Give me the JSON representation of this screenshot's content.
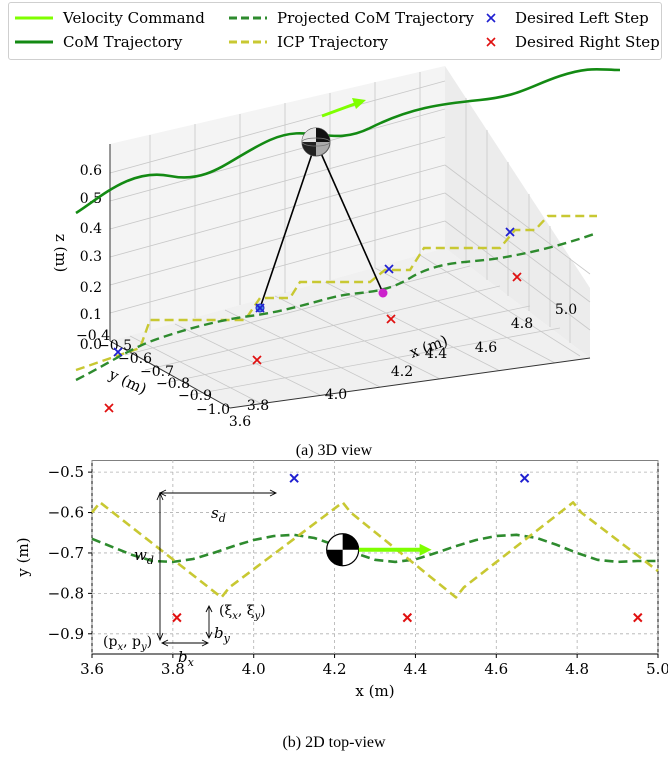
{
  "legend": {
    "items": [
      {
        "label": "Velocity Command",
        "color": "#7fff00",
        "style": "solid"
      },
      {
        "label": "CoM Trajectory",
        "color": "#138a13",
        "style": "solid"
      },
      {
        "label": "Projected CoM Trajectory",
        "color": "#2e8b2e",
        "style": "dashed"
      },
      {
        "label": "ICP Trajectory",
        "color": "#c8c832",
        "style": "dashed"
      },
      {
        "label": "Desired Left Step",
        "color": "#1f1fd0",
        "style": "x-marker"
      },
      {
        "label": "Desired Right Step",
        "color": "#e01010",
        "style": "x-marker"
      }
    ]
  },
  "captions": {
    "top": "(a) 3D view",
    "bottom": "(b) 2D top-view"
  },
  "chart_data": [
    {
      "type": "line",
      "view": "3d",
      "zlabel": "z (m)",
      "xlabel": "x (m)",
      "ylabel": "y (m)",
      "z_ticks": [
        "0.0",
        "0.1",
        "0.2",
        "0.3",
        "0.4",
        "0.5",
        "0.6"
      ],
      "x_ticks": [
        "3.6",
        "3.8",
        "4.0",
        "4.2",
        "4.4",
        "4.6",
        "4.8",
        "5.0"
      ],
      "y_ticks": [
        "−0.4",
        "−0.5",
        "−0.6",
        "−0.7",
        "−0.8",
        "−0.9",
        "−1.0"
      ],
      "xlim": [
        3.6,
        5.0
      ],
      "ylim": [
        -1.0,
        -0.4
      ],
      "zlim": [
        0.0,
        0.65
      ],
      "grid": true,
      "legend_position": "top"
    },
    {
      "type": "line",
      "view": "top",
      "xlabel": "x (m)",
      "ylabel": "y (m)",
      "xlim": [
        3.6,
        5.0
      ],
      "ylim": [
        -0.95,
        -0.47
      ],
      "x_ticks": [
        3.6,
        3.8,
        4.0,
        4.2,
        4.4,
        4.6,
        4.8,
        5.0
      ],
      "y_ticks": [
        -0.5,
        -0.6,
        -0.7,
        -0.8,
        -0.9
      ],
      "x_tick_labels": [
        "3.6",
        "3.8",
        "4.0",
        "4.2",
        "4.4",
        "4.6",
        "4.8",
        "5.0"
      ],
      "y_tick_labels": [
        "−0.5",
        "−0.6",
        "−0.7",
        "−0.8",
        "−0.9"
      ],
      "grid": true,
      "series": [
        {
          "name": "Projected CoM Trajectory",
          "x": [
            3.6,
            3.65,
            3.7,
            3.75,
            3.8,
            3.85,
            3.9,
            3.95,
            4.0,
            4.05,
            4.1,
            4.15,
            4.2,
            4.25,
            4.3,
            4.35,
            4.4,
            4.45,
            4.5,
            4.55,
            4.6,
            4.65,
            4.7,
            4.75,
            4.8,
            4.85,
            4.9,
            4.95,
            5.0
          ],
          "y": [
            -0.665,
            -0.685,
            -0.705,
            -0.72,
            -0.722,
            -0.715,
            -0.7,
            -0.683,
            -0.668,
            -0.658,
            -0.655,
            -0.663,
            -0.68,
            -0.7,
            -0.717,
            -0.722,
            -0.716,
            -0.7,
            -0.683,
            -0.668,
            -0.658,
            -0.655,
            -0.663,
            -0.68,
            -0.7,
            -0.717,
            -0.722,
            -0.72,
            -0.72
          ]
        },
        {
          "name": "ICP Trajectory",
          "x": [
            3.6,
            3.62,
            3.92,
            3.94,
            4.22,
            4.24,
            4.5,
            4.52,
            4.79,
            4.81,
            5.0
          ],
          "y": [
            -0.6,
            -0.575,
            -0.81,
            -0.785,
            -0.575,
            -0.6,
            -0.81,
            -0.785,
            -0.575,
            -0.6,
            -0.745
          ]
        },
        {
          "name": "Desired Left Step",
          "x": [
            4.1,
            4.67
          ],
          "y": [
            -0.515,
            -0.515
          ]
        },
        {
          "name": "Desired Right Step",
          "x": [
            3.81,
            4.38,
            4.95
          ],
          "y": [
            -0.86,
            -0.86,
            -0.86
          ]
        },
        {
          "name": "Velocity Command",
          "x": [
            4.26,
            4.44
          ],
          "y": [
            -0.692,
            -0.692
          ]
        }
      ],
      "com_marker": {
        "x": 4.22,
        "y": -0.692
      },
      "annotations": [
        {
          "label": "s_d",
          "parts": [
            "s",
            "d"
          ]
        },
        {
          "label": "w_d",
          "parts": [
            "w",
            "d"
          ]
        },
        {
          "label": "(ξ_x, ξ_y)",
          "parts": [
            "(ξ",
            "x",
            ", ξ",
            "y",
            ")"
          ]
        },
        {
          "label": "b_y",
          "parts": [
            "b",
            "y"
          ]
        },
        {
          "label": "(p_x, p_y)",
          "parts": [
            "(p",
            "x",
            ", p",
            "y",
            ")"
          ]
        },
        {
          "label": "b_x",
          "parts": [
            "b",
            "x"
          ]
        }
      ]
    }
  ]
}
